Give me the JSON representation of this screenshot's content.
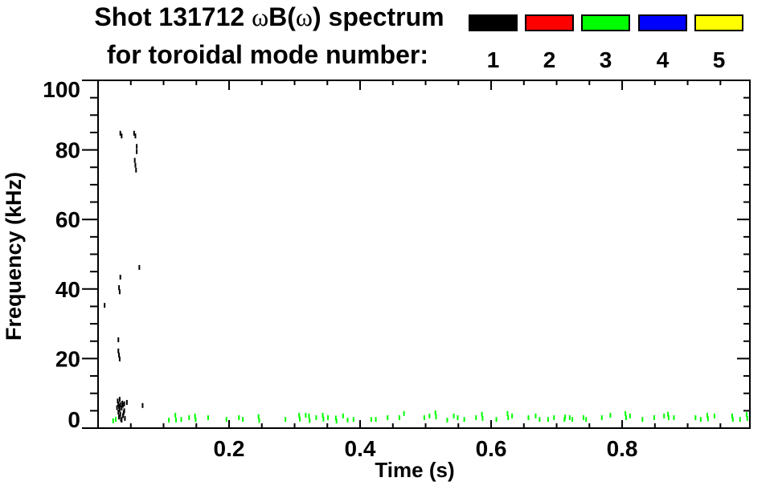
{
  "title": {
    "part1": "Shot 131712 ",
    "omega1": "ω",
    "part2": "B(",
    "omega2": "ω",
    "part3": ") spectrum",
    "line2": "for toroidal mode number:"
  },
  "legend": {
    "items": [
      {
        "label": "1",
        "color": "#000000"
      },
      {
        "label": "2",
        "color": "#ff0000"
      },
      {
        "label": "3",
        "color": "#00ff00"
      },
      {
        "label": "4",
        "color": "#0000ff"
      },
      {
        "label": "5",
        "color": "#ffff00"
      }
    ]
  },
  "chart_data": {
    "type": "scatter",
    "title": "Shot 131712 ωB(ω) spectrum",
    "subtitle": "for toroidal mode number: 1 2 3 4 5",
    "xlabel": "Time (s)",
    "ylabel": "Frequency (kHz)",
    "xlim": [
      0,
      0.995
    ],
    "ylim": [
      0,
      100
    ],
    "grid": false,
    "legend_position": "top-right",
    "x_major_ticks": [
      {
        "value": 0.2,
        "label": "0.2"
      },
      {
        "value": 0.4,
        "label": "0.4"
      },
      {
        "value": 0.6,
        "label": "0.6"
      },
      {
        "value": 0.8,
        "label": "0.8"
      }
    ],
    "x_minor_step": 0.05,
    "y_major_ticks": [
      {
        "value": 0,
        "label": "0"
      },
      {
        "value": 20,
        "label": "20"
      },
      {
        "value": 40,
        "label": "40"
      },
      {
        "value": 60,
        "label": "60"
      },
      {
        "value": 80,
        "label": "80"
      },
      {
        "value": 100,
        "label": "100"
      }
    ],
    "y_minor_step": 5,
    "series": [
      {
        "name": "1",
        "color": "#000000",
        "points": [
          [
            0.034,
            84.8
          ],
          [
            0.036,
            84.0
          ],
          [
            0.055,
            84.8
          ],
          [
            0.057,
            84.0
          ],
          [
            0.059,
            81.0
          ],
          [
            0.059,
            79.5
          ],
          [
            0.056,
            77.0
          ],
          [
            0.057,
            75.6
          ],
          [
            0.058,
            74.2
          ],
          [
            0.063,
            46.2
          ],
          [
            0.034,
            43.4
          ],
          [
            0.032,
            40.4
          ],
          [
            0.033,
            39.2
          ],
          [
            0.01,
            35.3
          ],
          [
            0.031,
            25.4
          ],
          [
            0.031,
            22.2
          ],
          [
            0.032,
            21.0
          ],
          [
            0.033,
            19.9
          ],
          [
            0.029,
            5.9
          ],
          [
            0.03,
            7.8
          ],
          [
            0.031,
            6.9
          ],
          [
            0.031,
            4.6
          ],
          [
            0.032,
            6.2
          ],
          [
            0.032,
            3.2
          ],
          [
            0.033,
            5.4
          ],
          [
            0.033,
            8.3
          ],
          [
            0.034,
            4.0
          ],
          [
            0.034,
            6.8
          ],
          [
            0.035,
            2.6
          ],
          [
            0.036,
            5.8
          ],
          [
            0.036,
            2.3
          ],
          [
            0.037,
            7.2
          ],
          [
            0.038,
            3.6
          ],
          [
            0.038,
            6.6
          ],
          [
            0.039,
            4.4
          ],
          [
            0.04,
            5.0
          ],
          [
            0.04,
            7.0
          ],
          [
            0.041,
            2.8
          ],
          [
            0.044,
            7.4
          ],
          [
            0.068,
            6.5
          ]
        ]
      },
      {
        "name": "2",
        "color": "#ff0000",
        "points": []
      },
      {
        "name": "3",
        "color": "#00ff00",
        "points": [
          [
            0.023,
            2.1
          ],
          [
            0.027,
            2.5
          ],
          [
            0.108,
            2.3
          ],
          [
            0.118,
            3.7
          ],
          [
            0.119,
            2.3
          ],
          [
            0.127,
            2.5
          ],
          [
            0.139,
            3.0
          ],
          [
            0.148,
            3.5
          ],
          [
            0.149,
            2.4
          ],
          [
            0.168,
            3.0
          ],
          [
            0.196,
            2.5
          ],
          [
            0.215,
            3.0
          ],
          [
            0.221,
            2.5
          ],
          [
            0.245,
            3.3
          ],
          [
            0.246,
            2.2
          ],
          [
            0.286,
            2.5
          ],
          [
            0.307,
            3.7
          ],
          [
            0.308,
            2.6
          ],
          [
            0.317,
            3.7
          ],
          [
            0.322,
            3.5
          ],
          [
            0.323,
            2.2
          ],
          [
            0.333,
            3.0
          ],
          [
            0.343,
            3.7
          ],
          [
            0.344,
            2.6
          ],
          [
            0.351,
            3.0
          ],
          [
            0.363,
            2.9
          ],
          [
            0.364,
            2.0
          ],
          [
            0.374,
            3.5
          ],
          [
            0.381,
            2.3
          ],
          [
            0.39,
            2.5
          ],
          [
            0.417,
            2.5
          ],
          [
            0.424,
            2.5
          ],
          [
            0.442,
            3.0
          ],
          [
            0.46,
            3.0
          ],
          [
            0.467,
            4.2
          ],
          [
            0.498,
            3.0
          ],
          [
            0.506,
            3.5
          ],
          [
            0.515,
            4.4
          ],
          [
            0.516,
            3.2
          ],
          [
            0.533,
            2.3
          ],
          [
            0.543,
            3.5
          ],
          [
            0.549,
            3.0
          ],
          [
            0.559,
            2.5
          ],
          [
            0.577,
            3.0
          ],
          [
            0.586,
            4.0
          ],
          [
            0.587,
            2.8
          ],
          [
            0.608,
            2.5
          ],
          [
            0.625,
            4.2
          ],
          [
            0.626,
            3.0
          ],
          [
            0.632,
            3.5
          ],
          [
            0.657,
            3.0
          ],
          [
            0.668,
            3.5
          ],
          [
            0.674,
            2.5
          ],
          [
            0.687,
            2.5
          ],
          [
            0.696,
            3.0
          ],
          [
            0.712,
            2.5
          ],
          [
            0.713,
            3.2
          ],
          [
            0.72,
            3.0
          ],
          [
            0.724,
            2.5
          ],
          [
            0.741,
            3.0
          ],
          [
            0.745,
            2.5
          ],
          [
            0.769,
            3.0
          ],
          [
            0.782,
            3.7
          ],
          [
            0.805,
            4.2
          ],
          [
            0.806,
            3.0
          ],
          [
            0.812,
            3.5
          ],
          [
            0.831,
            2.5
          ],
          [
            0.849,
            3.0
          ],
          [
            0.864,
            3.5
          ],
          [
            0.87,
            4.0
          ],
          [
            0.871,
            3.0
          ],
          [
            0.879,
            3.0
          ],
          [
            0.912,
            3.0
          ],
          [
            0.92,
            2.5
          ],
          [
            0.93,
            3.7
          ],
          [
            0.931,
            2.7
          ],
          [
            0.941,
            3.5
          ],
          [
            0.968,
            3.5
          ],
          [
            0.969,
            2.5
          ],
          [
            0.98,
            2.5
          ],
          [
            0.99,
            3.9
          ],
          [
            0.991,
            2.8
          ]
        ]
      },
      {
        "name": "4",
        "color": "#0000ff",
        "points": []
      },
      {
        "name": "5",
        "color": "#ffff00",
        "points": []
      }
    ]
  }
}
